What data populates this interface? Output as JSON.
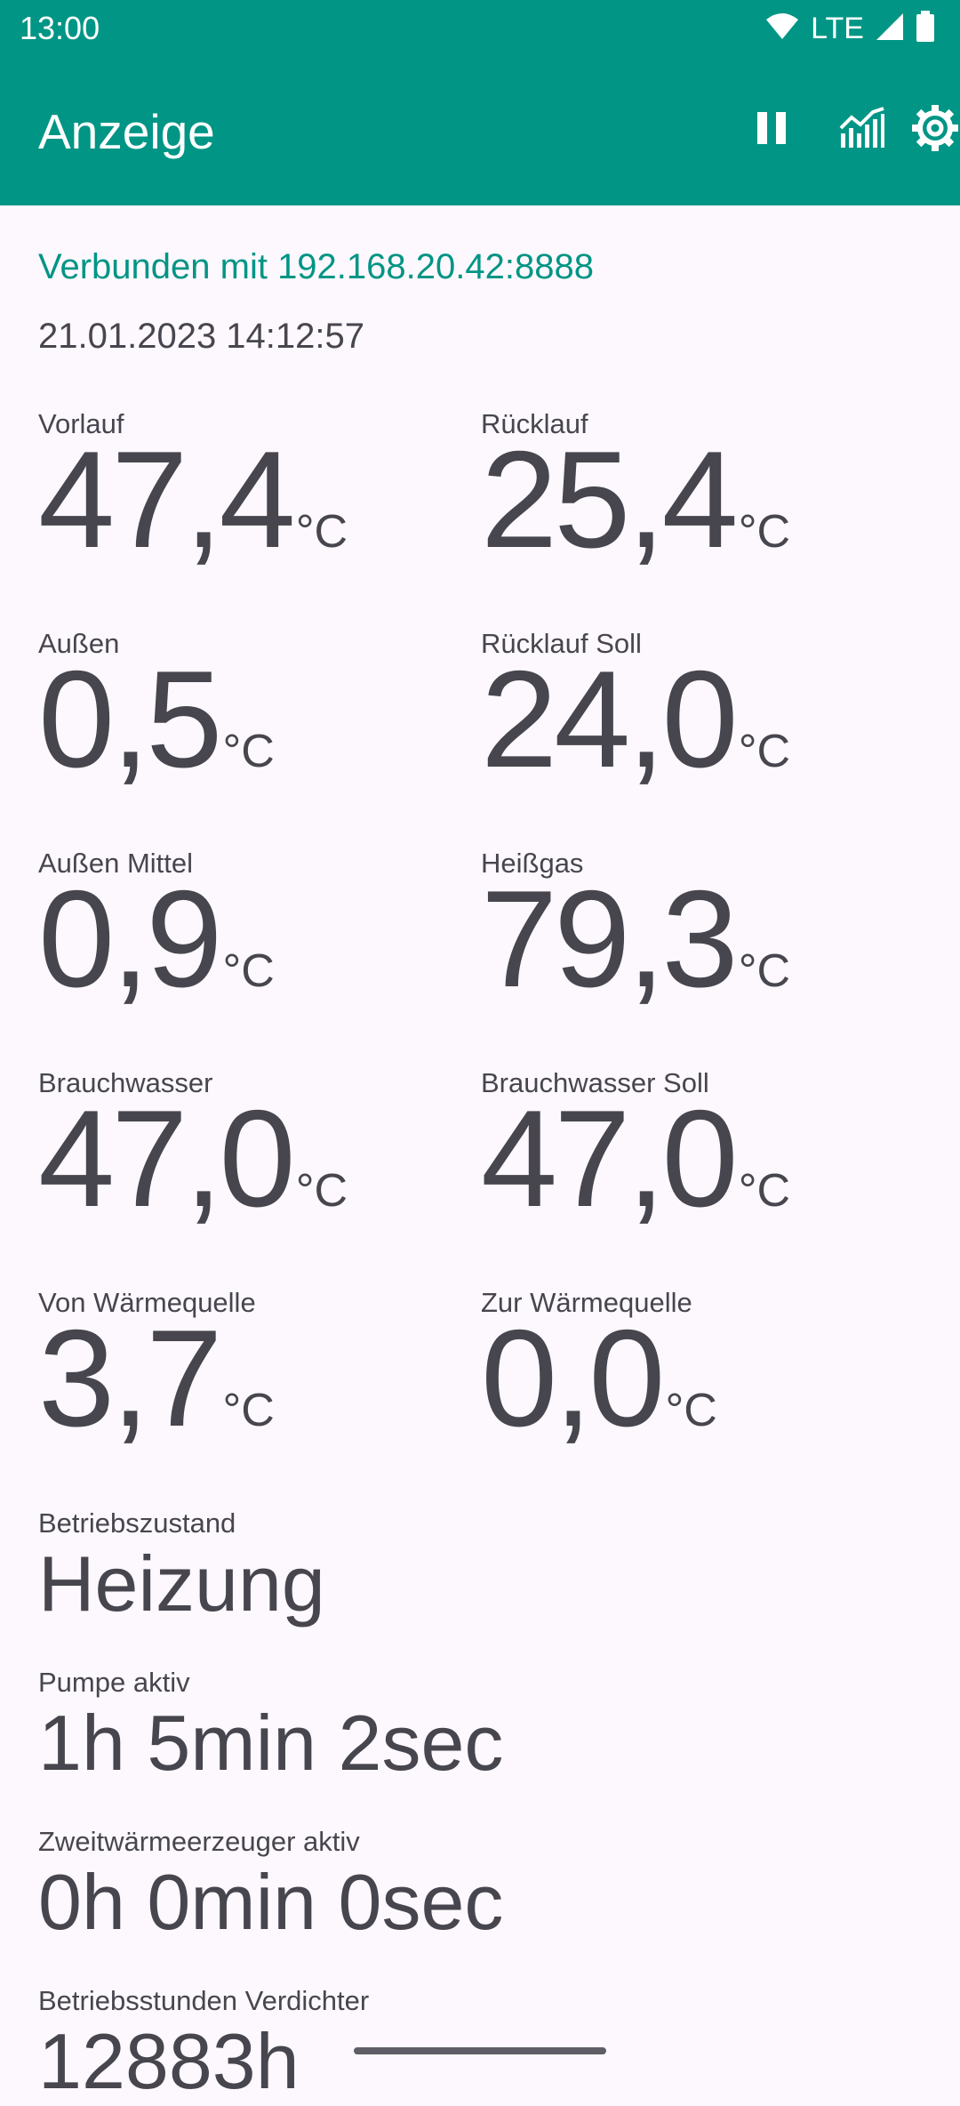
{
  "status_bar": {
    "time": "13:00",
    "network": "LTE",
    "icons": [
      "wifi-icon",
      "cell-signal-icon",
      "battery-icon"
    ]
  },
  "app_bar": {
    "title": "Anzeige",
    "actions": [
      "pause-icon",
      "chart-icon",
      "settings-icon"
    ]
  },
  "connection_status": "Verbunden mit 192.168.20.42:8888",
  "timestamp": "21.01.2023 14:12:57",
  "unit": "°C",
  "readings": [
    {
      "label": "Vorlauf",
      "value": "47,4"
    },
    {
      "label": "Rücklauf",
      "value": "25,4"
    },
    {
      "label": "Außen",
      "value": "0,5"
    },
    {
      "label": "Rücklauf Soll",
      "value": "24,0"
    },
    {
      "label": "Außen Mittel",
      "value": "0,9"
    },
    {
      "label": "Heißgas",
      "value": "79,3"
    },
    {
      "label": "Brauchwasser",
      "value": "47,0"
    },
    {
      "label": "Brauchwasser Soll",
      "value": "47,0"
    },
    {
      "label": "Von Wärmequelle",
      "value": "3,7"
    },
    {
      "label": "Zur Wärmequelle",
      "value": "0,0"
    }
  ],
  "info": [
    {
      "label": "Betriebszustand",
      "value": "Heizung"
    },
    {
      "label": "Pumpe aktiv",
      "value": "1h 5min 2sec"
    },
    {
      "label": "Zweitwärmeerzeuger aktiv",
      "value": "0h 0min 0sec"
    },
    {
      "label": "Betriebsstunden Verdichter",
      "value": "12883h"
    }
  ],
  "colors": {
    "primary": "#009585",
    "background": "#fdf8fd",
    "text": "#47464f"
  }
}
